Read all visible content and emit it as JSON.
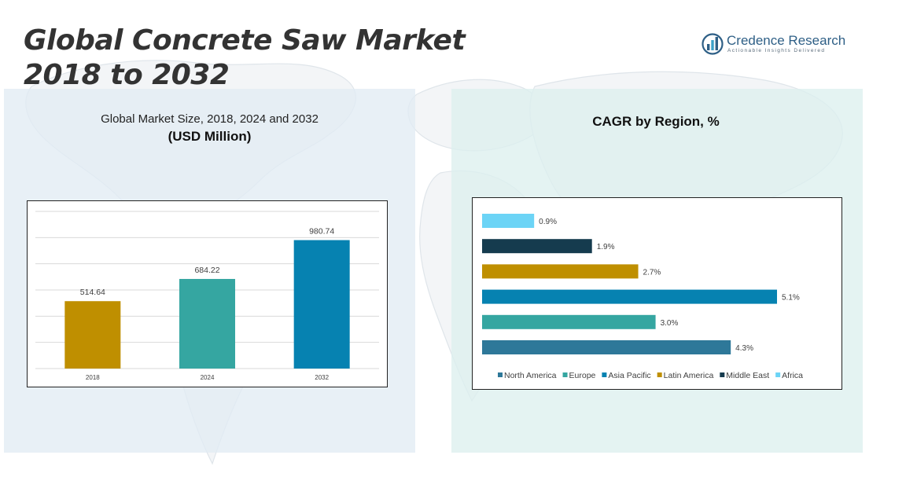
{
  "header": {
    "title_line1": "Global Concrete Saw Market",
    "title_line2": "2018 to 2032"
  },
  "logo": {
    "name": "Credence Research",
    "tagline": "Actionable Insights Delivered",
    "icon": "bar-chart-globe-icon"
  },
  "left_panel": {
    "subtitle": "Global Market Size, 2018, 2024 and 2032",
    "unit": "(USD Million)"
  },
  "right_panel": {
    "title": "CAGR by Region, %"
  },
  "chart_data": [
    {
      "type": "bar",
      "orientation": "vertical",
      "title": "Global Market Size, 2018, 2024 and 2032",
      "ylabel": "(USD Million)",
      "categories": [
        "2018",
        "2024",
        "2032"
      ],
      "values": [
        514.64,
        684.22,
        980.74
      ],
      "value_labels": [
        "514.64",
        "684.22",
        "980.74"
      ],
      "colors": [
        "#bf8f00",
        "#35a6a1",
        "#0682b1"
      ],
      "ylim": [
        0,
        1200
      ],
      "grid": true
    },
    {
      "type": "bar",
      "orientation": "horizontal",
      "title": "CAGR by Region, %",
      "categories": [
        "North America",
        "Europe",
        "Asia Pacific",
        "Latin America",
        "Middle East",
        "Africa"
      ],
      "values": [
        4.3,
        3.0,
        5.1,
        2.7,
        1.9,
        0.9
      ],
      "value_labels": [
        "4.3%",
        "3.0%",
        "5.1%",
        "2.7%",
        "1.9%",
        "0.9%"
      ],
      "colors": [
        "#2e7899",
        "#35a6a1",
        "#0682b1",
        "#bf8f00",
        "#153b4e",
        "#6cd4f6"
      ],
      "grid": false,
      "legend": "bottom"
    }
  ]
}
